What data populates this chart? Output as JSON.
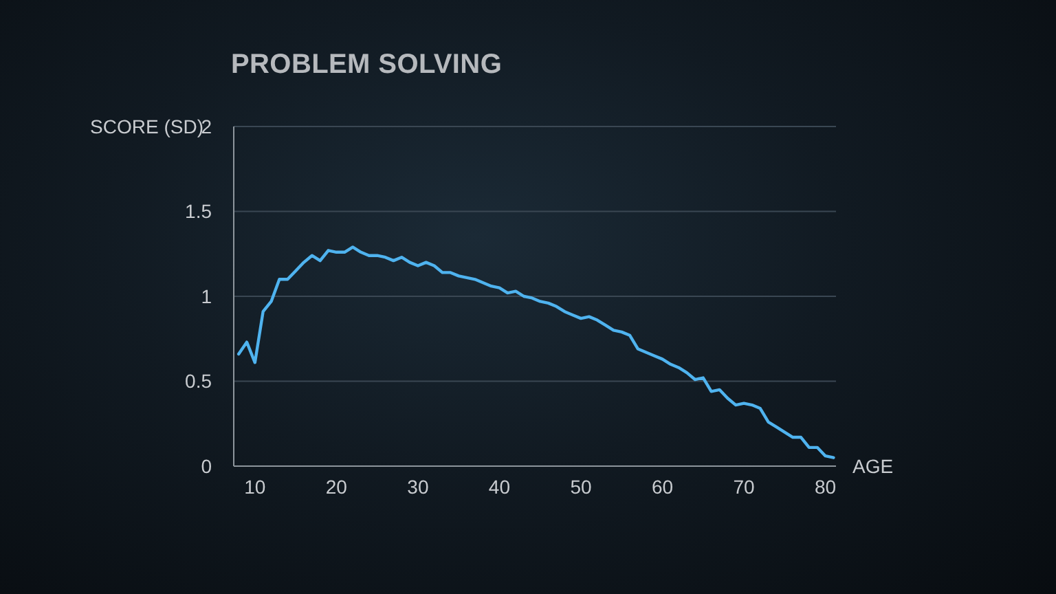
{
  "chart_data": {
    "type": "line",
    "title": "PROBLEM SOLVING",
    "xlabel": "AGE",
    "ylabel": "SCORE (SD)",
    "x": [
      8,
      9,
      10,
      11,
      12,
      13,
      14,
      15,
      16,
      17,
      18,
      19,
      20,
      21,
      22,
      23,
      24,
      25,
      26,
      27,
      28,
      29,
      30,
      31,
      32,
      33,
      34,
      35,
      36,
      37,
      38,
      39,
      40,
      41,
      42,
      43,
      44,
      45,
      46,
      47,
      48,
      49,
      50,
      51,
      52,
      53,
      54,
      55,
      56,
      57,
      58,
      59,
      60,
      61,
      62,
      63,
      64,
      65,
      66,
      67,
      68,
      69,
      70,
      71,
      72,
      73,
      74,
      75,
      76,
      77,
      78,
      79,
      80,
      81
    ],
    "values": [
      0.66,
      0.73,
      0.61,
      0.91,
      0.97,
      1.1,
      1.1,
      1.15,
      1.2,
      1.24,
      1.21,
      1.27,
      1.26,
      1.26,
      1.29,
      1.26,
      1.24,
      1.24,
      1.23,
      1.21,
      1.23,
      1.2,
      1.18,
      1.2,
      1.18,
      1.14,
      1.14,
      1.12,
      1.11,
      1.1,
      1.08,
      1.06,
      1.05,
      1.02,
      1.03,
      1.0,
      0.99,
      0.97,
      0.96,
      0.94,
      0.91,
      0.89,
      0.87,
      0.88,
      0.86,
      0.83,
      0.8,
      0.79,
      0.77,
      0.69,
      0.67,
      0.65,
      0.63,
      0.6,
      0.58,
      0.55,
      0.51,
      0.52,
      0.44,
      0.45,
      0.4,
      0.36,
      0.37,
      0.36,
      0.34,
      0.26,
      0.23,
      0.2,
      0.17,
      0.17,
      0.11,
      0.11,
      0.06,
      0.05
    ],
    "color": "#4fb3ef",
    "marker": "none",
    "line_style": "solid",
    "xlim": [
      7.4,
      81.3
    ],
    "xticks": [
      10,
      20,
      30,
      40,
      50,
      60,
      70,
      80
    ],
    "ylim": [
      0,
      2
    ],
    "yticks": [
      0,
      0.5,
      1,
      1.5,
      2
    ],
    "grid": "y"
  }
}
